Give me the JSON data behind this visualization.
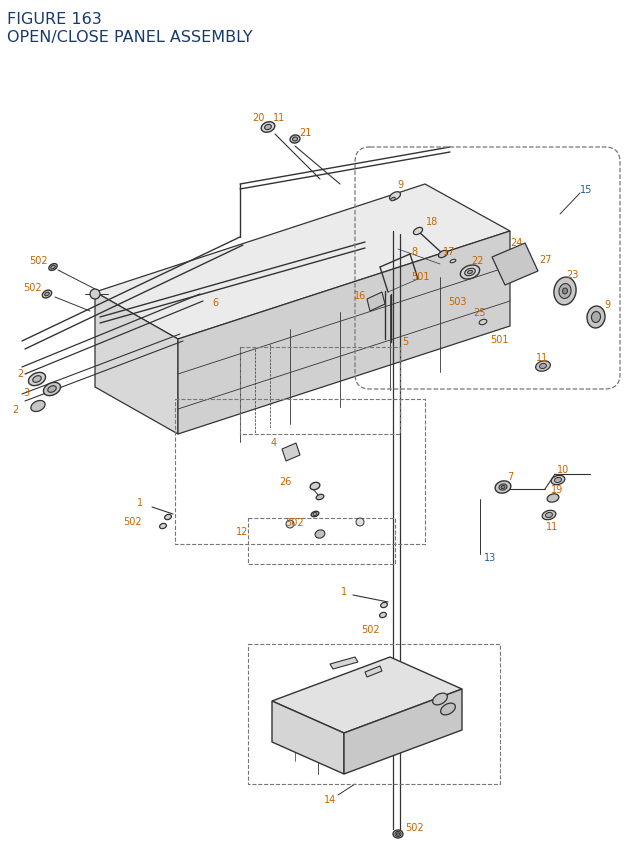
{
  "title_line1": "FIGURE 163",
  "title_line2": "OPEN/CLOSE PANEL ASSEMBLY",
  "title_color": "#1a3a6e",
  "title_fontsize": 11.5,
  "bg_color": "#ffffff",
  "label_color_orange": "#c86400",
  "label_color_blue": "#1a5fa0",
  "label_color_black": "#222222",
  "label_fontsize": 7.0,
  "diagram_color": "#444444",
  "dashed_box_color": "#777777",
  "line_color": "#333333"
}
